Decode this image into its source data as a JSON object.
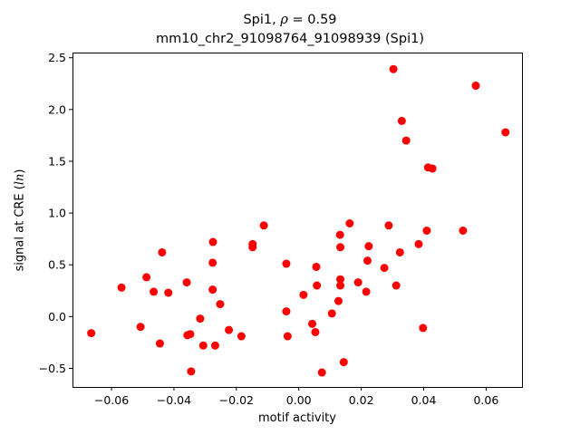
{
  "chart_data": {
    "type": "scatter",
    "title_prefix": "Spi1, ",
    "title_rho_symbol": "ρ",
    "title_rho_value": " = 0.59",
    "subtitle": "mm10_chr2_91098764_91098939 (Spi1)",
    "xlabel": "motif activity",
    "ylabel_prefix": "signal at CRE (",
    "ylabel_italic": "ln",
    "ylabel_suffix": ")",
    "xlim": [
      -0.0725,
      0.0715
    ],
    "ylim": [
      -0.68,
      2.55
    ],
    "xticks": [
      -0.06,
      -0.04,
      -0.02,
      0.0,
      0.02,
      0.04,
      0.06
    ],
    "xtick_labels": [
      "−0.06",
      "−0.04",
      "−0.02",
      "0.00",
      "0.02",
      "0.04",
      "0.06"
    ],
    "yticks": [
      -0.5,
      0.0,
      0.5,
      1.0,
      1.5,
      2.0,
      2.5
    ],
    "ytick_labels": [
      "−0.5",
      "0.0",
      "0.5",
      "1.0",
      "1.5",
      "2.0",
      "2.5"
    ],
    "grid": false,
    "marker_color": "#ff0000",
    "points": [
      {
        "x": -0.0665,
        "y": -0.16
      },
      {
        "x": -0.0568,
        "y": 0.28
      },
      {
        "x": -0.0507,
        "y": -0.1
      },
      {
        "x": -0.0488,
        "y": 0.38
      },
      {
        "x": -0.0465,
        "y": 0.24
      },
      {
        "x": -0.0445,
        "y": -0.26
      },
      {
        "x": -0.0438,
        "y": 0.62
      },
      {
        "x": -0.0418,
        "y": 0.23
      },
      {
        "x": -0.0359,
        "y": 0.33
      },
      {
        "x": -0.0357,
        "y": -0.18
      },
      {
        "x": -0.0348,
        "y": -0.17
      },
      {
        "x": -0.0345,
        "y": -0.53
      },
      {
        "x": -0.0316,
        "y": -0.02
      },
      {
        "x": -0.0306,
        "y": -0.28
      },
      {
        "x": -0.0275,
        "y": 0.72
      },
      {
        "x": -0.0276,
        "y": 0.52
      },
      {
        "x": -0.0276,
        "y": 0.26
      },
      {
        "x": -0.0268,
        "y": -0.28
      },
      {
        "x": -0.0252,
        "y": 0.12
      },
      {
        "x": -0.0224,
        "y": -0.13
      },
      {
        "x": -0.0184,
        "y": -0.19
      },
      {
        "x": -0.0148,
        "y": 0.7
      },
      {
        "x": -0.0148,
        "y": 0.67
      },
      {
        "x": -0.0112,
        "y": 0.88
      },
      {
        "x": -0.004,
        "y": 0.51
      },
      {
        "x": -0.004,
        "y": 0.05
      },
      {
        "x": -0.0036,
        "y": -0.19
      },
      {
        "x": 0.0015,
        "y": 0.21
      },
      {
        "x": 0.0043,
        "y": -0.07
      },
      {
        "x": 0.0053,
        "y": -0.15
      },
      {
        "x": 0.0056,
        "y": 0.48
      },
      {
        "x": 0.0058,
        "y": 0.3
      },
      {
        "x": 0.0074,
        "y": -0.54
      },
      {
        "x": 0.0106,
        "y": 0.03
      },
      {
        "x": 0.0127,
        "y": 0.15
      },
      {
        "x": 0.0132,
        "y": 0.79
      },
      {
        "x": 0.0133,
        "y": 0.67
      },
      {
        "x": 0.0133,
        "y": 0.36
      },
      {
        "x": 0.0133,
        "y": 0.3
      },
      {
        "x": 0.0144,
        "y": -0.44
      },
      {
        "x": 0.0163,
        "y": 0.9
      },
      {
        "x": 0.019,
        "y": 0.33
      },
      {
        "x": 0.0216,
        "y": 0.24
      },
      {
        "x": 0.022,
        "y": 0.54
      },
      {
        "x": 0.0224,
        "y": 0.68
      },
      {
        "x": 0.0274,
        "y": 0.47
      },
      {
        "x": 0.0288,
        "y": 0.88
      },
      {
        "x": 0.0303,
        "y": 2.39
      },
      {
        "x": 0.0312,
        "y": 0.3
      },
      {
        "x": 0.0324,
        "y": 0.62
      },
      {
        "x": 0.033,
        "y": 1.89
      },
      {
        "x": 0.0344,
        "y": 1.7
      },
      {
        "x": 0.0384,
        "y": 0.7
      },
      {
        "x": 0.0398,
        "y": -0.11
      },
      {
        "x": 0.041,
        "y": 0.83
      },
      {
        "x": 0.0414,
        "y": 1.44
      },
      {
        "x": 0.0428,
        "y": 1.43
      },
      {
        "x": 0.0526,
        "y": 0.83
      },
      {
        "x": 0.0567,
        "y": 2.23
      },
      {
        "x": 0.0662,
        "y": 1.78
      }
    ]
  }
}
